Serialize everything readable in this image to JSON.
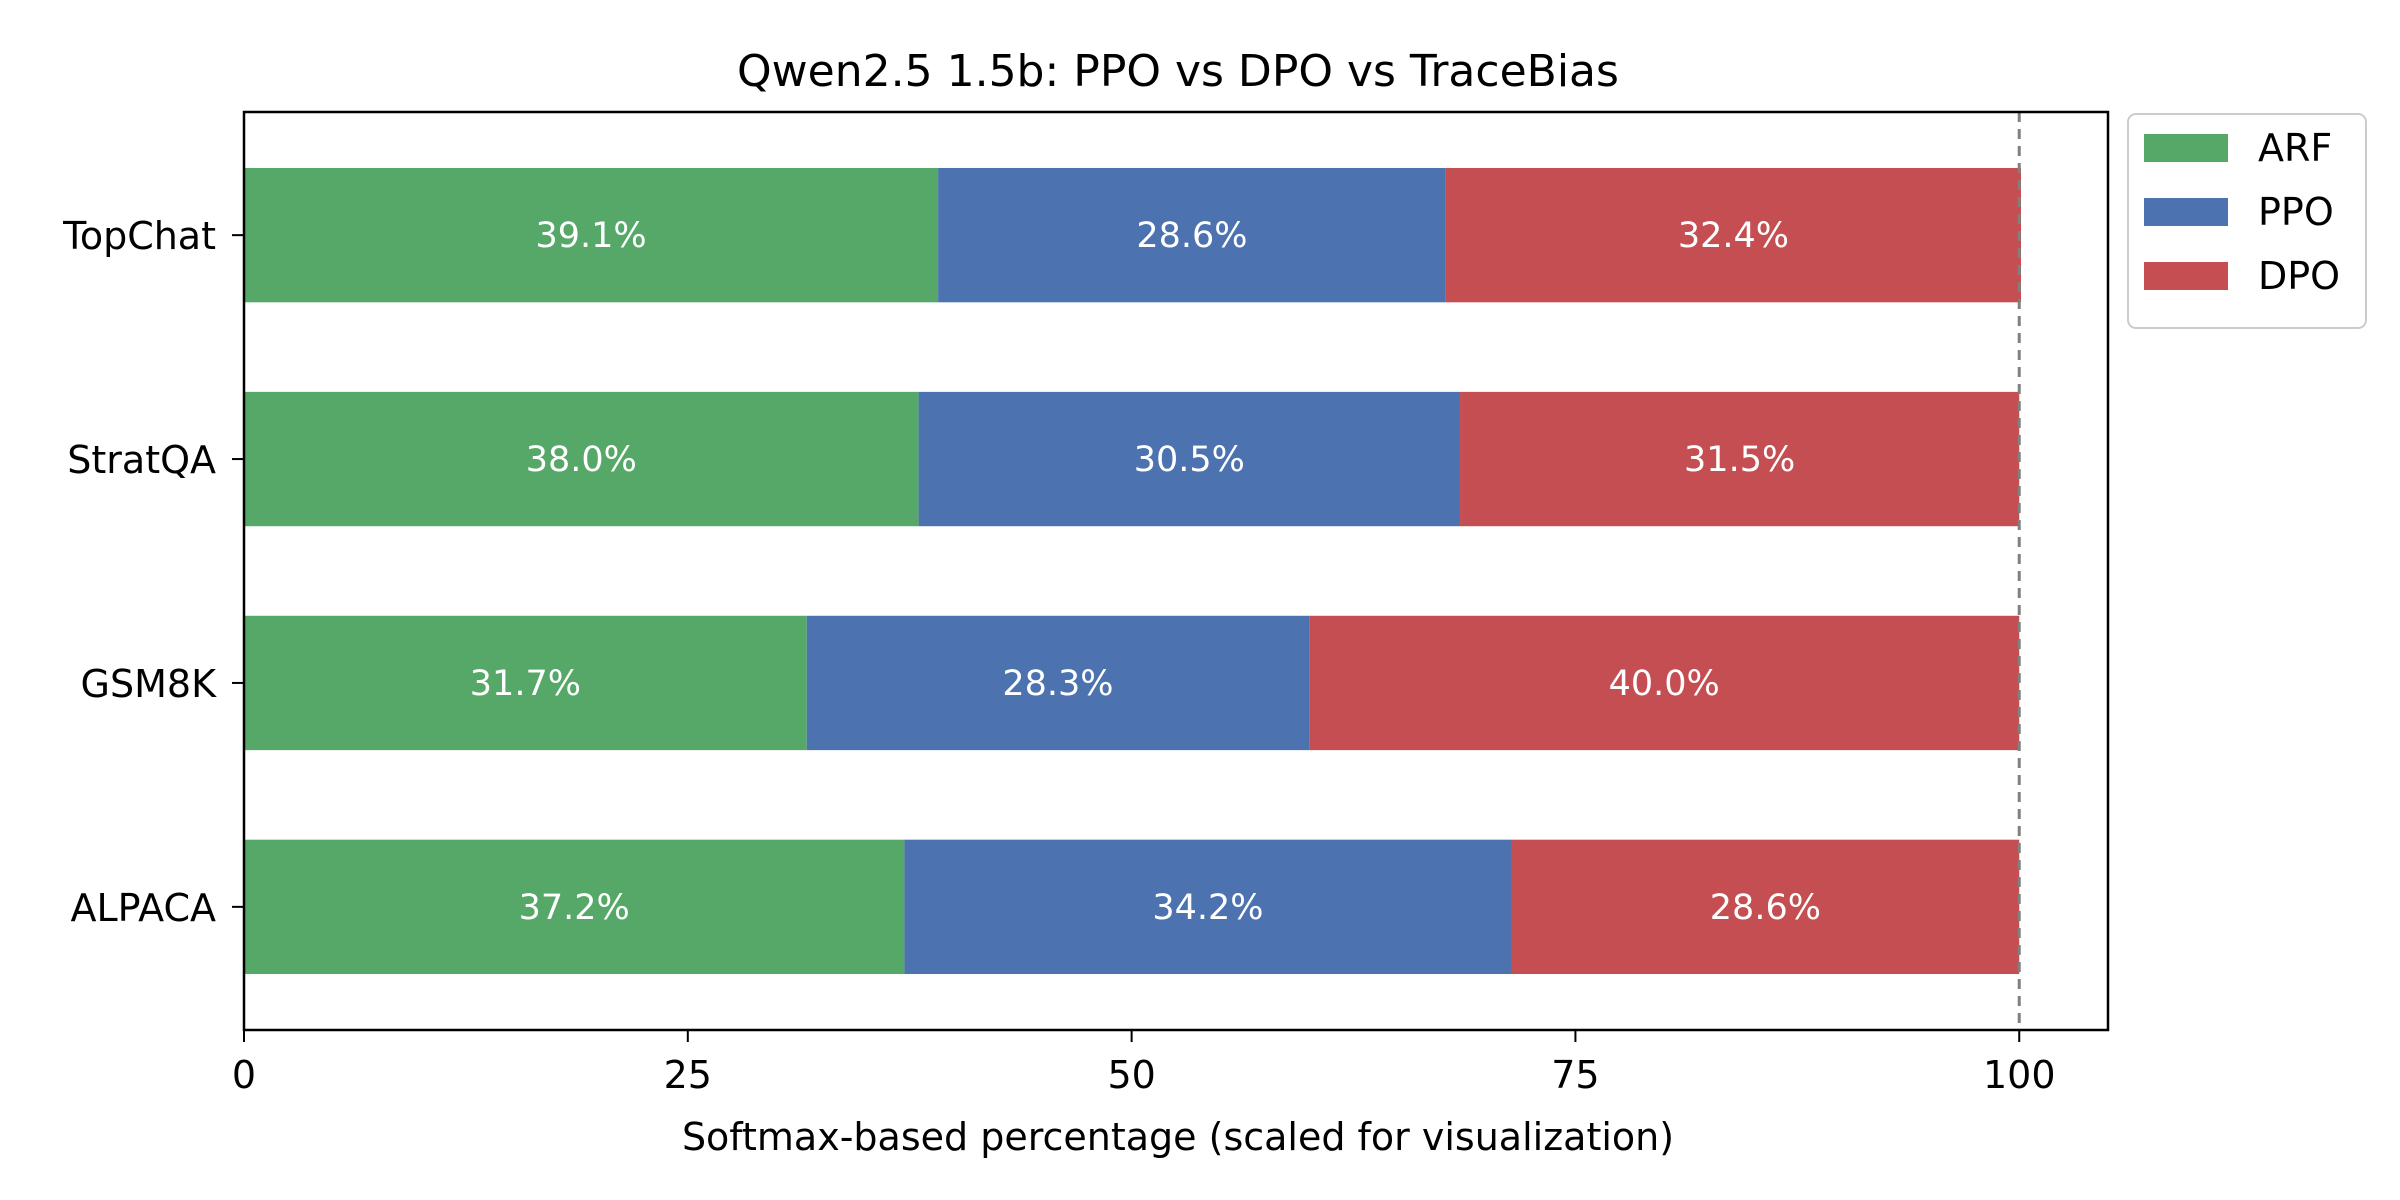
{
  "chart_data": {
    "type": "bar",
    "orientation": "horizontal",
    "stacked": true,
    "title": "Qwen2.5 1.5b: PPO vs DPO vs TraceBias",
    "xlabel": "Softmax-based percentage (scaled for visualization)",
    "ylabel": "",
    "xlim": [
      0,
      105
    ],
    "xticks": [
      0,
      25,
      50,
      75,
      100
    ],
    "xtick_labels": [
      "0",
      "25",
      "50",
      "75",
      "100"
    ],
    "reference_line": 100,
    "categories": [
      "TopChat",
      "StratQA",
      "GSM8K",
      "ALPACA"
    ],
    "series": [
      {
        "name": "ARF",
        "color": "#55a868",
        "values": [
          39.1,
          38.0,
          31.7,
          37.2
        ],
        "labels": [
          "39.1%",
          "38.0%",
          "31.7%",
          "37.2%"
        ]
      },
      {
        "name": "PPO",
        "color": "#4c72b0",
        "values": [
          28.6,
          30.5,
          28.3,
          34.2
        ],
        "labels": [
          "28.6%",
          "30.5%",
          "28.3%",
          "34.2%"
        ]
      },
      {
        "name": "DPO",
        "color": "#c44e52",
        "values": [
          32.4,
          31.5,
          40.0,
          28.6
        ],
        "labels": [
          "32.4%",
          "31.5%",
          "40.0%",
          "28.6%"
        ]
      }
    ],
    "legend_position": "outside-top-right",
    "grid": false
  }
}
